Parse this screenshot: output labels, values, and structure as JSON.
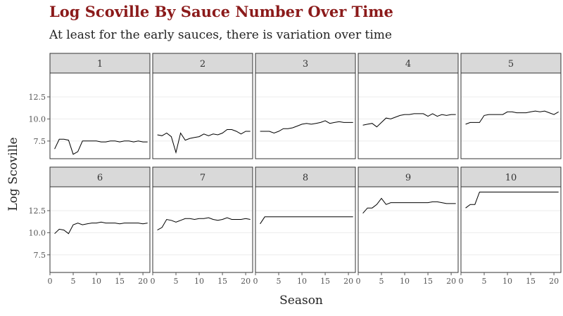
{
  "chart_data": {
    "type": "line",
    "title": "Log Scoville By Sauce Number Over Time",
    "subtitle": "At least for the early sauces, there is variation over time",
    "xlabel": "Season",
    "ylabel": "Log Scoville",
    "x_ticks": [
      0,
      5,
      10,
      15,
      20
    ],
    "y_ticks": [
      7.5,
      10.0,
      12.5
    ],
    "y_tick_labels": [
      "7.5",
      "10.0",
      "12.5"
    ],
    "xlim": [
      0,
      21.5
    ],
    "ylim": [
      5.5,
      15.2
    ],
    "grid": true,
    "facet_layout": "2 rows x 5 columns",
    "x": [
      1,
      2,
      3,
      4,
      5,
      6,
      7,
      8,
      9,
      10,
      11,
      12,
      13,
      14,
      15,
      16,
      17,
      18,
      19,
      20,
      21
    ],
    "series": [
      {
        "name": "1",
        "values": [
          6.6,
          7.7,
          7.7,
          7.6,
          6.0,
          6.3,
          7.5,
          7.5,
          7.5,
          7.5,
          7.4,
          7.4,
          7.5,
          7.5,
          7.4,
          7.5,
          7.5,
          7.4,
          7.5,
          7.4,
          7.4
        ]
      },
      {
        "name": "2",
        "values": [
          8.2,
          8.1,
          8.4,
          8.0,
          6.2,
          8.4,
          7.6,
          7.8,
          7.9,
          8.0,
          8.3,
          8.1,
          8.3,
          8.2,
          8.4,
          8.8,
          8.8,
          8.6,
          8.3,
          8.6,
          8.6
        ]
      },
      {
        "name": "3",
        "values": [
          8.6,
          8.6,
          8.6,
          8.4,
          8.6,
          8.9,
          8.9,
          9.0,
          9.2,
          9.4,
          9.5,
          9.4,
          9.5,
          9.6,
          9.8,
          9.5,
          9.6,
          9.7,
          9.6,
          9.6,
          9.6
        ]
      },
      {
        "name": "4",
        "values": [
          9.3,
          9.4,
          9.5,
          9.1,
          9.6,
          10.1,
          10.0,
          10.2,
          10.4,
          10.5,
          10.5,
          10.6,
          10.6,
          10.6,
          10.3,
          10.6,
          10.3,
          10.5,
          10.4,
          10.5,
          10.5
        ]
      },
      {
        "name": "5",
        "values": [
          9.4,
          9.6,
          9.6,
          9.6,
          10.4,
          10.5,
          10.5,
          10.5,
          10.5,
          10.8,
          10.8,
          10.7,
          10.7,
          10.7,
          10.8,
          10.9,
          10.8,
          10.9,
          10.7,
          10.5,
          10.8
        ]
      },
      {
        "name": "6",
        "values": [
          9.9,
          10.4,
          10.3,
          9.9,
          10.9,
          11.1,
          10.9,
          11.0,
          11.1,
          11.1,
          11.2,
          11.1,
          11.1,
          11.1,
          11.0,
          11.1,
          11.1,
          11.1,
          11.1,
          11.0,
          11.1
        ]
      },
      {
        "name": "7",
        "values": [
          10.3,
          10.6,
          11.5,
          11.4,
          11.2,
          11.4,
          11.6,
          11.6,
          11.5,
          11.6,
          11.6,
          11.7,
          11.5,
          11.4,
          11.5,
          11.7,
          11.5,
          11.5,
          11.5,
          11.6,
          11.5
        ]
      },
      {
        "name": "8",
        "values": [
          11.0,
          11.8,
          11.8,
          11.8,
          11.8,
          11.8,
          11.8,
          11.8,
          11.8,
          11.8,
          11.8,
          11.8,
          11.8,
          11.8,
          11.8,
          11.8,
          11.8,
          11.8,
          11.8,
          11.8,
          11.8
        ]
      },
      {
        "name": "9",
        "values": [
          12.2,
          12.8,
          12.8,
          13.2,
          13.9,
          13.2,
          13.4,
          13.4,
          13.4,
          13.4,
          13.4,
          13.4,
          13.4,
          13.4,
          13.4,
          13.5,
          13.5,
          13.4,
          13.3,
          13.3,
          13.3
        ]
      },
      {
        "name": "10",
        "values": [
          12.8,
          13.2,
          13.2,
          14.6,
          14.6,
          14.6,
          14.6,
          14.6,
          14.6,
          14.6,
          14.6,
          14.6,
          14.6,
          14.6,
          14.6,
          14.6,
          14.6,
          14.6,
          14.6,
          14.6,
          14.6
        ]
      }
    ],
    "colors": {
      "title": "#8B1A1A",
      "strip_fill": "#D9D9D9",
      "panel_border": "#333333",
      "grid": "#EBEBEB",
      "line": "#000000"
    }
  }
}
